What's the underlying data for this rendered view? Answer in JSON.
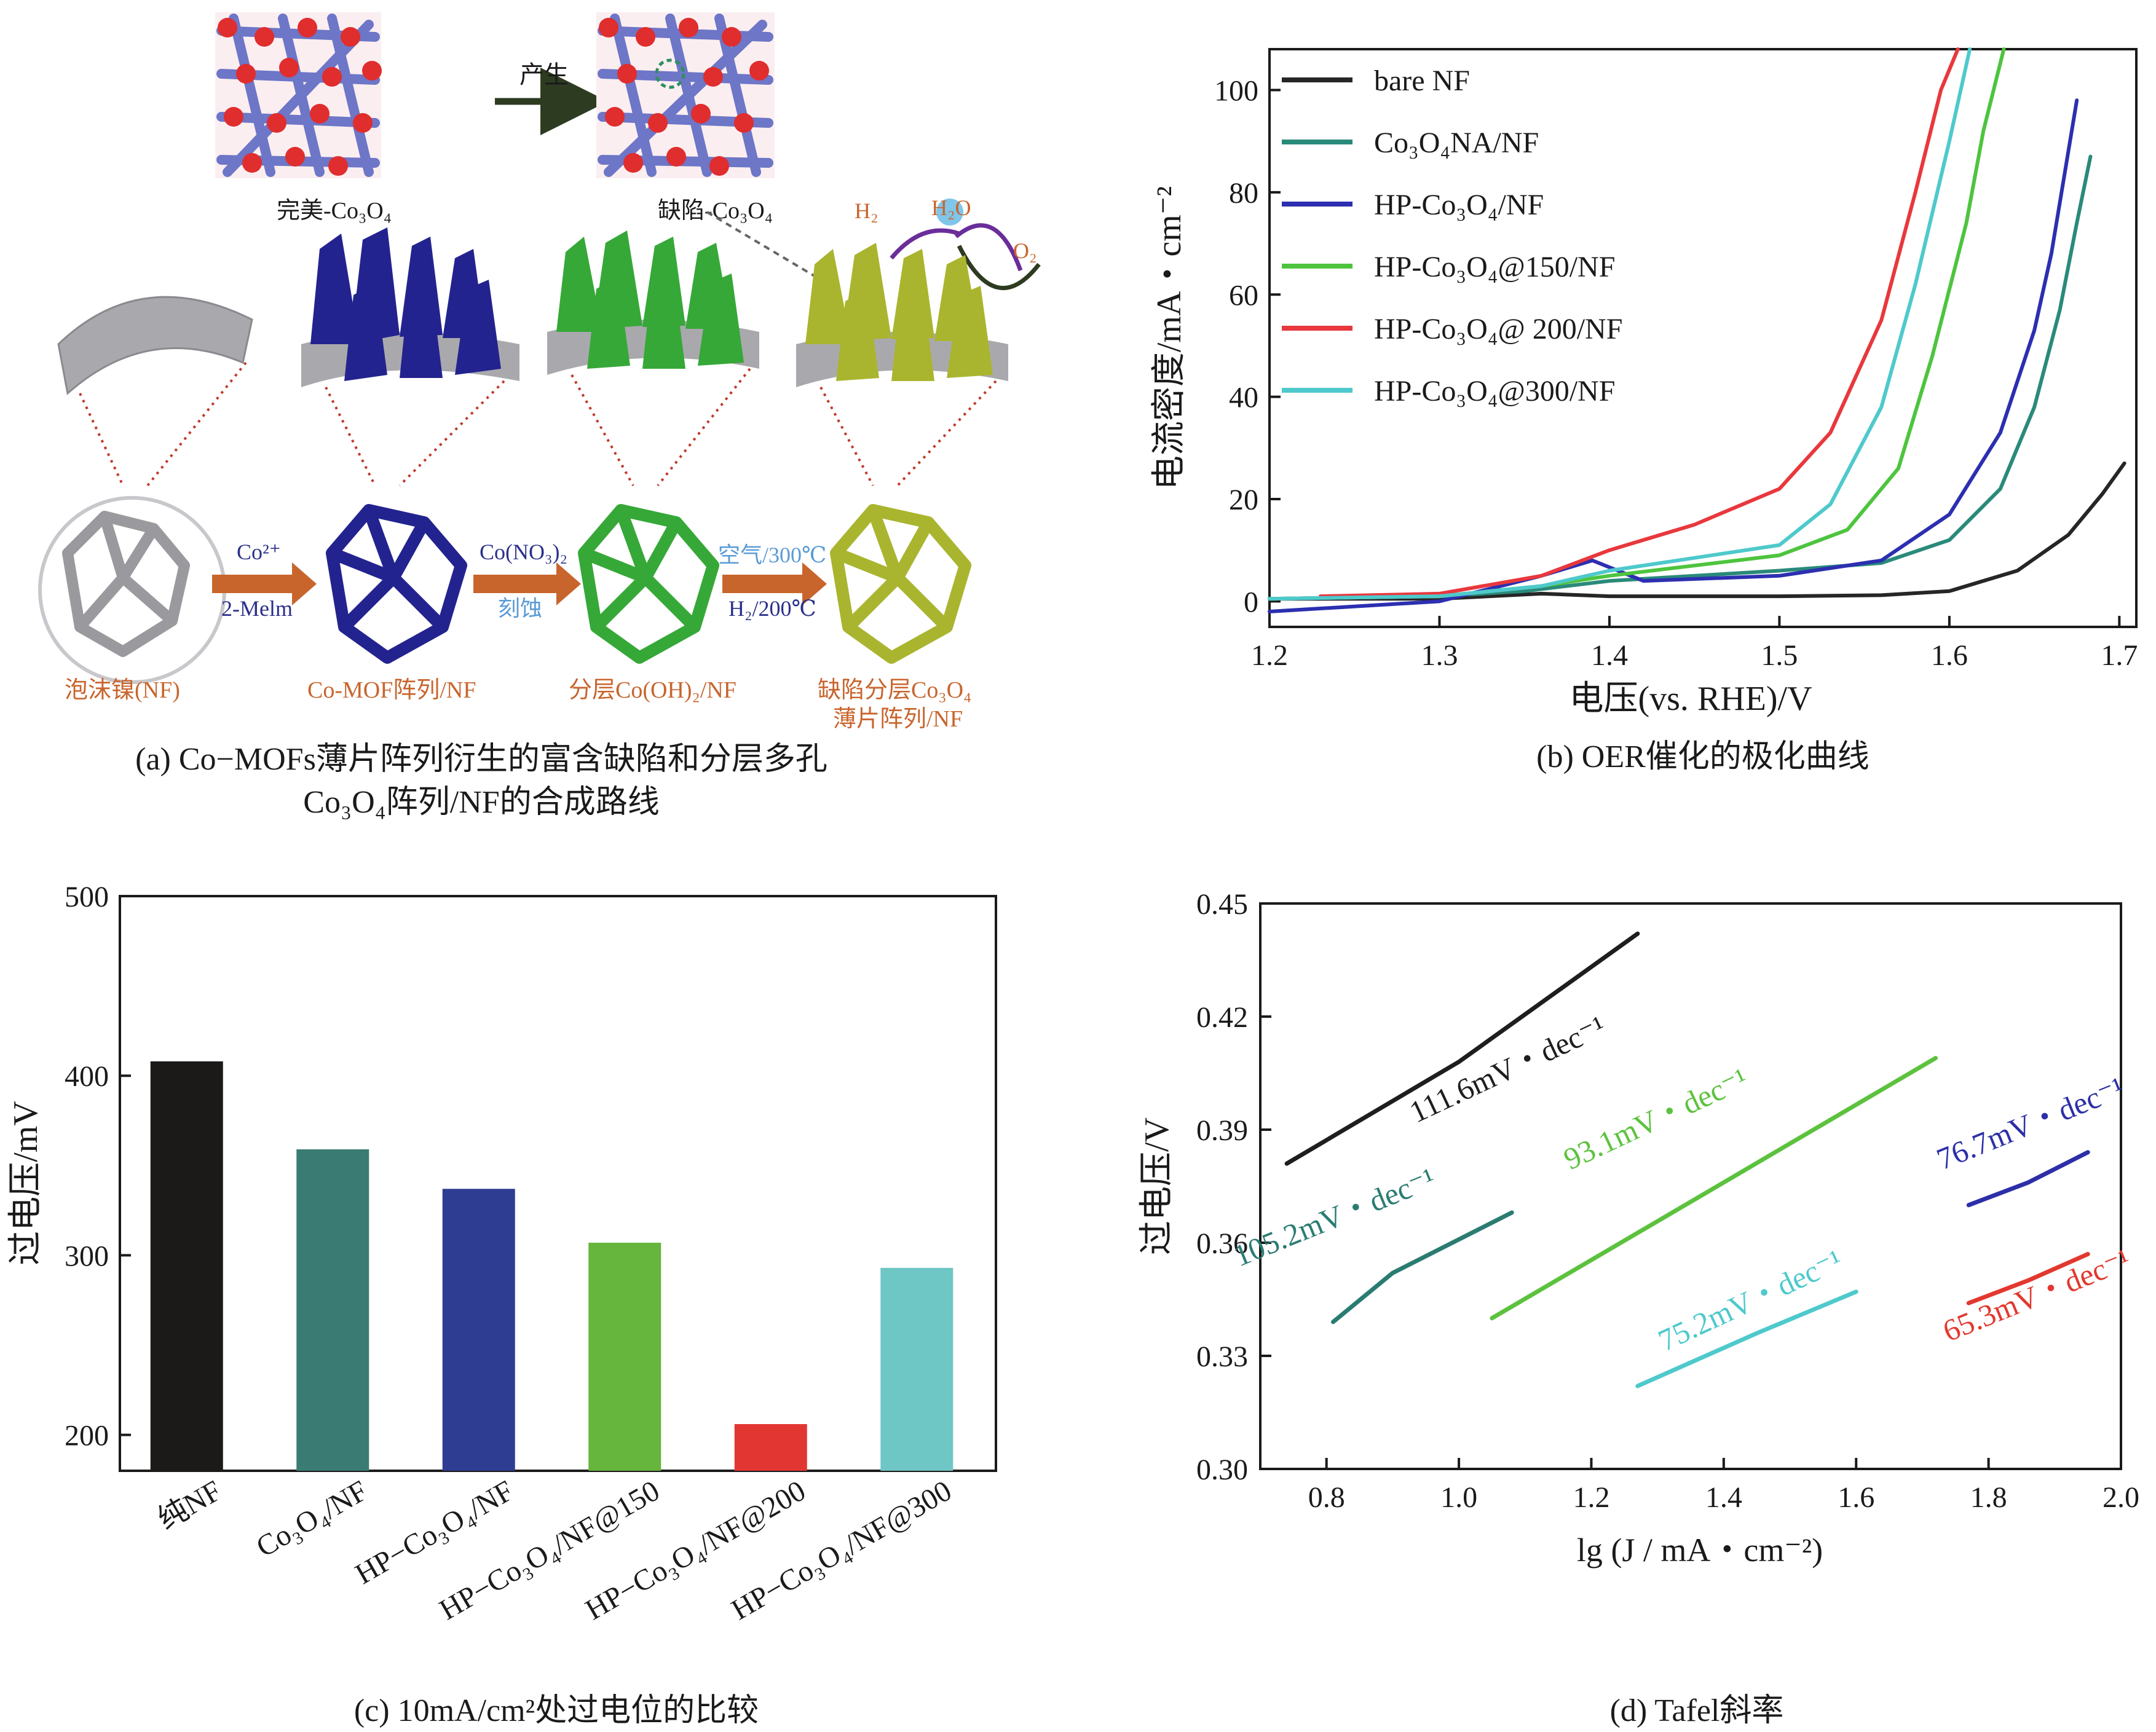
{
  "panel_a": {
    "caption_line1": "(a) Co−MOFs薄片阵列衍生的富含缺陷和分层多孔",
    "caption_line2": "Co₃O₄阵列/NF的合成路线",
    "top_arrow_label": "产生",
    "perfect_label": "完美-Co₃O₄",
    "defect_label": "缺陷-Co₃O₄",
    "h2_label": "H₂",
    "h2o_label": "H₂O",
    "o2_label": "O₂",
    "step1_top": "Co²⁺",
    "step1_bottom": "2-Melm",
    "step2_top": "Co(NO₃)₂",
    "step2_bottom": "刻蚀",
    "step3_top": "空气/300℃",
    "step3_bottom": "H₂/200℃",
    "stage_labels": [
      "泡沫镍(NF)",
      "Co-MOF阵列/NF",
      "分层Co(OH)₂/NF",
      "缺陷分层Co₃O₄",
      "薄片阵列/NF"
    ],
    "colors": {
      "nf": "#a9a9ad",
      "mof": "#23238f",
      "cooh": "#36a838",
      "co3o4": "#a9b52e",
      "arrow": "#c8652d",
      "label": "#c8652d"
    }
  },
  "chart_data": [
    {
      "id": "b",
      "type": "line",
      "title": "(b) OER催化的极化曲线",
      "xlabel": "电压(vs. RHE)/V",
      "ylabel": "电流密度/mA・cm⁻²",
      "xlim": [
        1.2,
        1.71
      ],
      "ylim": [
        -5,
        108
      ],
      "xticks": [
        "1.2",
        "1.3",
        "1.4",
        "1.5",
        "1.6",
        "1.7"
      ],
      "yticks": [
        "0",
        "20",
        "40",
        "60",
        "80",
        "100"
      ],
      "legend_position": "top-left",
      "series": [
        {
          "name": "bare NF",
          "color": "#262626",
          "x": [
            1.2,
            1.3,
            1.36,
            1.4,
            1.5,
            1.56,
            1.6,
            1.64,
            1.67,
            1.69,
            1.703
          ],
          "y": [
            0.5,
            0.5,
            1.5,
            1,
            1,
            1.2,
            2,
            6,
            13,
            21,
            27
          ]
        },
        {
          "name": "Co₃O₄NA/NF",
          "color": "#2a8a7a",
          "x": [
            1.2,
            1.3,
            1.35,
            1.4,
            1.5,
            1.56,
            1.6,
            1.63,
            1.65,
            1.665,
            1.675,
            1.683
          ],
          "y": [
            0.5,
            1,
            2,
            4,
            6,
            7.5,
            12,
            22,
            38,
            57,
            74,
            87
          ]
        },
        {
          "name": "HP-Co₃O₄/NF",
          "color": "#2c2fb0",
          "x": [
            1.2,
            1.3,
            1.36,
            1.39,
            1.42,
            1.5,
            1.56,
            1.6,
            1.63,
            1.65,
            1.66,
            1.675
          ],
          "y": [
            -2,
            0,
            5,
            8,
            4,
            5,
            8,
            17,
            33,
            53,
            68,
            98
          ]
        },
        {
          "name": "HP-Co₃O₄@150/NF",
          "color": "#4ec43e",
          "x": [
            1.2,
            1.3,
            1.36,
            1.4,
            1.5,
            1.54,
            1.57,
            1.59,
            1.61,
            1.62,
            1.632
          ],
          "y": [
            0.5,
            1,
            3,
            5,
            9,
            14,
            26,
            48,
            74,
            92,
            108
          ]
        },
        {
          "name": "HP-Co₃O₄@ 200/NF",
          "color": "#e8383d",
          "x": [
            1.23,
            1.3,
            1.36,
            1.4,
            1.45,
            1.5,
            1.53,
            1.56,
            1.58,
            1.595,
            1.605
          ],
          "y": [
            1,
            1.5,
            5,
            10,
            15,
            22,
            33,
            55,
            80,
            100,
            108
          ]
        },
        {
          "name": "HP-Co₃O₄@300/NF",
          "color": "#4ec9cc",
          "x": [
            1.2,
            1.3,
            1.36,
            1.4,
            1.5,
            1.53,
            1.56,
            1.58,
            1.6,
            1.612
          ],
          "y": [
            0.5,
            1,
            3,
            6,
            11,
            19,
            38,
            62,
            90,
            108
          ]
        }
      ]
    },
    {
      "id": "c",
      "type": "bar",
      "title": "(c) 10mA/cm²处过电位的比较",
      "xlabel": "",
      "ylabel": "过电压/mV",
      "ylim": [
        180,
        500
      ],
      "yticks": [
        "200",
        "300",
        "400",
        "500"
      ],
      "categories": [
        "纯NF",
        "Co₃O₄/NF",
        "HP−Co₃O₄/NF",
        "HP−Co₃O₄/NF@150",
        "HP−Co₃O₄/NF@200",
        "HP−Co₃O₄/NF@300"
      ],
      "values": [
        408,
        359,
        337,
        307,
        206,
        293
      ],
      "colors": [
        "#1c1a19",
        "#3a7c74",
        "#2e3c92",
        "#66b53c",
        "#e23633",
        "#6ec6c5"
      ]
    },
    {
      "id": "d",
      "type": "line",
      "title": "(d) Tafel斜率",
      "xlabel": "lg (J / mA・cm⁻²)",
      "ylabel": "过电压/V",
      "xlim": [
        0.7,
        2.0
      ],
      "ylim": [
        0.3,
        0.45
      ],
      "xticks": [
        "0.8",
        "1.0",
        "1.2",
        "1.4",
        "1.6",
        "1.8",
        "2.0"
      ],
      "yticks": [
        "0.30",
        "0.33",
        "0.36",
        "0.39",
        "0.42",
        "0.45"
      ],
      "series": [
        {
          "name": "111.6mV・dec⁻¹",
          "color": "#1e1e1e",
          "x": [
            0.74,
            1.0,
            1.27
          ],
          "y": [
            0.381,
            0.408,
            0.442
          ]
        },
        {
          "name": "105.2mV・dec⁻¹",
          "color": "#2a7c72",
          "x": [
            0.81,
            0.9,
            1.08
          ],
          "y": [
            0.339,
            0.352,
            0.368
          ]
        },
        {
          "name": "93.1mV・dec⁻¹",
          "color": "#5cc23e",
          "x": [
            1.05,
            1.4,
            1.72
          ],
          "y": [
            0.34,
            0.376,
            0.409
          ]
        },
        {
          "name": "75.2mV・dec⁻¹",
          "color": "#4ec9cc",
          "x": [
            1.27,
            1.45,
            1.6
          ],
          "y": [
            0.322,
            0.336,
            0.347
          ]
        },
        {
          "name": "76.7mV・dec⁻¹",
          "color": "#2c2fa8",
          "x": [
            1.77,
            1.86,
            1.95
          ],
          "y": [
            0.37,
            0.376,
            0.384
          ]
        },
        {
          "name": "65.3mV・dec⁻¹",
          "color": "#e2382f",
          "x": [
            1.77,
            1.86,
            1.95
          ],
          "y": [
            0.344,
            0.35,
            0.357
          ]
        }
      ]
    }
  ]
}
